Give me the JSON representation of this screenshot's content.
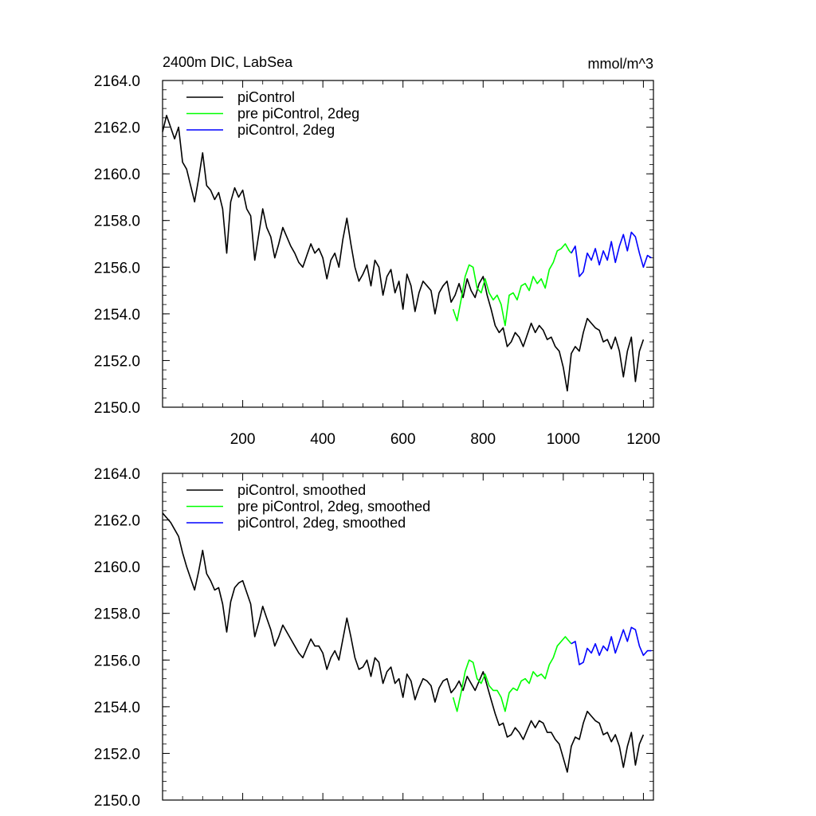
{
  "chart_data": [
    {
      "type": "line",
      "title": "2400m DIC, LabSea",
      "units": "mmol/m^3",
      "xlim": [
        0,
        1225
      ],
      "ylim": [
        2150,
        2164
      ],
      "x_tick_labels": [
        "200",
        "400",
        "600",
        "800",
        "1000",
        "1200"
      ],
      "y_tick_labels": [
        "2150.0",
        "2152.0",
        "2154.0",
        "2156.0",
        "2158.0",
        "2160.0",
        "2162.0",
        "2164.0"
      ],
      "legend_position": "top-left",
      "series": [
        {
          "name": "piControl",
          "color": "#000000",
          "x": [
            0,
            10,
            20,
            30,
            40,
            50,
            60,
            70,
            80,
            90,
            100,
            110,
            120,
            130,
            140,
            150,
            160,
            170,
            180,
            190,
            200,
            210,
            220,
            230,
            240,
            250,
            260,
            270,
            280,
            290,
            300,
            310,
            320,
            330,
            340,
            350,
            360,
            370,
            380,
            390,
            400,
            410,
            420,
            430,
            440,
            450,
            460,
            470,
            480,
            490,
            500,
            510,
            520,
            530,
            540,
            550,
            560,
            570,
            580,
            590,
            600,
            610,
            620,
            630,
            640,
            650,
            660,
            670,
            680,
            690,
            700,
            710,
            720,
            730,
            740,
            750,
            760,
            770,
            780,
            790,
            800,
            810,
            820,
            830,
            840,
            850,
            860,
            870,
            880,
            890,
            900,
            910,
            920,
            930,
            940,
            950,
            960,
            970,
            980,
            990,
            1000,
            1010,
            1020,
            1030,
            1040,
            1050,
            1060,
            1070,
            1080,
            1090,
            1100,
            1110,
            1120,
            1130,
            1140,
            1150,
            1160,
            1170,
            1180,
            1190,
            1200
          ],
          "y": [
            2161.8,
            2162.5,
            2162.0,
            2161.5,
            2162.0,
            2160.5,
            2160.2,
            2159.5,
            2158.8,
            2159.8,
            2160.9,
            2159.5,
            2159.3,
            2158.9,
            2159.2,
            2158.5,
            2156.6,
            2158.8,
            2159.4,
            2159.0,
            2159.3,
            2158.5,
            2158.2,
            2156.3,
            2157.4,
            2158.5,
            2157.7,
            2157.3,
            2156.4,
            2157.0,
            2157.7,
            2157.3,
            2156.9,
            2156.6,
            2156.2,
            2156.0,
            2156.5,
            2157.0,
            2156.6,
            2156.8,
            2156.4,
            2155.5,
            2156.3,
            2156.6,
            2156.0,
            2157.2,
            2158.1,
            2157.0,
            2156.0,
            2155.4,
            2155.7,
            2156.1,
            2155.2,
            2156.3,
            2156.0,
            2154.8,
            2155.6,
            2155.9,
            2154.9,
            2155.4,
            2154.2,
            2155.7,
            2155.2,
            2154.1,
            2154.9,
            2155.4,
            2155.2,
            2155.0,
            2154.0,
            2154.9,
            2155.2,
            2155.4,
            2154.5,
            2154.8,
            2155.3,
            2154.7,
            2155.5,
            2155.0,
            2154.7,
            2155.3,
            2155.6,
            2154.8,
            2154.2,
            2153.5,
            2153.2,
            2153.4,
            2152.6,
            2152.8,
            2153.2,
            2153.0,
            2152.6,
            2153.1,
            2153.6,
            2153.2,
            2153.5,
            2153.3,
            2152.9,
            2153.0,
            2152.6,
            2152.4,
            2151.7,
            2150.7,
            2152.3,
            2152.6,
            2152.4,
            2153.2,
            2153.8,
            2153.6,
            2153.4,
            2153.3,
            2152.8,
            2152.9,
            2152.5,
            2153.0,
            2152.4,
            2151.3,
            2152.4,
            2153.0,
            2151.1,
            2152.4,
            2152.9
          ]
        },
        {
          "name": "pre piControl, 2deg",
          "color": "#00ff00",
          "x": [
            725,
            735,
            745,
            755,
            765,
            775,
            785,
            795,
            805,
            815,
            825,
            835,
            845,
            855,
            865,
            875,
            885,
            895,
            905,
            915,
            925,
            935,
            945,
            955,
            965,
            975,
            985,
            995,
            1005,
            1015,
            1020
          ],
          "y": [
            2154.2,
            2153.7,
            2154.6,
            2155.6,
            2156.1,
            2156.0,
            2155.1,
            2154.9,
            2155.5,
            2154.9,
            2154.6,
            2154.8,
            2154.4,
            2153.5,
            2154.8,
            2154.9,
            2154.6,
            2155.2,
            2155.3,
            2155.0,
            2155.6,
            2155.3,
            2155.5,
            2155.1,
            2155.9,
            2156.2,
            2156.7,
            2156.8,
            2157.0,
            2156.7,
            2156.6
          ]
        },
        {
          "name": "piControl, 2deg",
          "color": "#0000ff",
          "x": [
            1020,
            1030,
            1040,
            1050,
            1060,
            1070,
            1080,
            1090,
            1100,
            1110,
            1120,
            1130,
            1140,
            1150,
            1160,
            1170,
            1180,
            1190,
            1200,
            1210,
            1220
          ],
          "y": [
            2156.6,
            2156.9,
            2155.6,
            2155.8,
            2156.6,
            2156.3,
            2156.8,
            2156.1,
            2156.7,
            2156.3,
            2157.1,
            2156.2,
            2156.9,
            2157.4,
            2156.7,
            2157.5,
            2157.3,
            2156.6,
            2156.0,
            2156.5,
            2156.4
          ]
        }
      ]
    },
    {
      "type": "line",
      "title": "",
      "xlim": [
        0,
        1225
      ],
      "ylim": [
        2150,
        2164
      ],
      "y_tick_labels": [
        "2150.0",
        "2152.0",
        "2154.0",
        "2156.0",
        "2158.0",
        "2160.0",
        "2162.0",
        "2164.0"
      ],
      "legend_position": "top-left",
      "series": [
        {
          "name": "piControl, smoothed",
          "color": "#000000",
          "x": [
            0,
            10,
            20,
            30,
            40,
            50,
            60,
            70,
            80,
            90,
            100,
            110,
            120,
            130,
            140,
            150,
            160,
            170,
            180,
            190,
            200,
            210,
            220,
            230,
            240,
            250,
            260,
            270,
            280,
            290,
            300,
            310,
            320,
            330,
            340,
            350,
            360,
            370,
            380,
            390,
            400,
            410,
            420,
            430,
            440,
            450,
            460,
            470,
            480,
            490,
            500,
            510,
            520,
            530,
            540,
            550,
            560,
            570,
            580,
            590,
            600,
            610,
            620,
            630,
            640,
            650,
            660,
            670,
            680,
            690,
            700,
            710,
            720,
            730,
            740,
            750,
            760,
            770,
            780,
            790,
            800,
            810,
            820,
            830,
            840,
            850,
            860,
            870,
            880,
            890,
            900,
            910,
            920,
            930,
            940,
            950,
            960,
            970,
            980,
            990,
            1000,
            1010,
            1020,
            1030,
            1040,
            1050,
            1060,
            1070,
            1080,
            1090,
            1100,
            1110,
            1120,
            1130,
            1140,
            1150,
            1160,
            1170,
            1180,
            1190,
            1200
          ],
          "y": [
            2162.3,
            2162.1,
            2161.9,
            2161.6,
            2161.3,
            2160.6,
            2160.0,
            2159.5,
            2159.0,
            2159.8,
            2160.7,
            2159.7,
            2159.4,
            2159.0,
            2159.1,
            2158.4,
            2157.2,
            2158.5,
            2159.1,
            2159.3,
            2159.4,
            2158.9,
            2158.4,
            2157.0,
            2157.6,
            2158.3,
            2157.8,
            2157.3,
            2156.6,
            2157.0,
            2157.5,
            2157.2,
            2156.9,
            2156.6,
            2156.3,
            2156.1,
            2156.5,
            2156.9,
            2156.6,
            2156.6,
            2156.3,
            2155.6,
            2156.1,
            2156.4,
            2156.0,
            2156.9,
            2157.8,
            2157.0,
            2156.1,
            2155.6,
            2155.7,
            2156.0,
            2155.3,
            2156.1,
            2155.9,
            2155.0,
            2155.5,
            2155.7,
            2155.0,
            2155.2,
            2154.4,
            2155.4,
            2155.1,
            2154.3,
            2154.8,
            2155.2,
            2155.1,
            2154.9,
            2154.2,
            2154.8,
            2155.1,
            2155.2,
            2154.6,
            2154.8,
            2155.1,
            2154.7,
            2155.3,
            2155.0,
            2154.7,
            2155.1,
            2155.5,
            2154.9,
            2154.3,
            2153.7,
            2153.2,
            2153.3,
            2152.7,
            2152.8,
            2153.1,
            2152.9,
            2152.6,
            2153.0,
            2153.4,
            2153.1,
            2153.4,
            2153.3,
            2152.9,
            2152.9,
            2152.6,
            2152.4,
            2151.8,
            2151.2,
            2152.3,
            2152.7,
            2152.6,
            2153.3,
            2153.8,
            2153.6,
            2153.4,
            2153.3,
            2152.8,
            2152.9,
            2152.5,
            2152.8,
            2152.3,
            2151.4,
            2152.3,
            2152.9,
            2151.5,
            2152.4,
            2152.8
          ]
        },
        {
          "name": "pre piControl, 2deg, smoothed",
          "color": "#00ff00",
          "x": [
            725,
            735,
            745,
            755,
            765,
            775,
            785,
            795,
            805,
            815,
            825,
            835,
            845,
            855,
            865,
            875,
            885,
            895,
            905,
            915,
            925,
            935,
            945,
            955,
            965,
            975,
            985,
            995,
            1005,
            1015,
            1020
          ],
          "y": [
            2154.4,
            2153.8,
            2154.6,
            2155.5,
            2156.0,
            2155.9,
            2155.2,
            2155.0,
            2155.4,
            2154.9,
            2154.7,
            2154.7,
            2154.4,
            2153.8,
            2154.6,
            2154.8,
            2154.7,
            2155.1,
            2155.2,
            2155.0,
            2155.5,
            2155.3,
            2155.4,
            2155.2,
            2155.8,
            2156.1,
            2156.6,
            2156.8,
            2157.0,
            2156.8,
            2156.7
          ]
        },
        {
          "name": "piControl, 2deg, smoothed",
          "color": "#0000ff",
          "x": [
            1020,
            1030,
            1040,
            1050,
            1060,
            1070,
            1080,
            1090,
            1100,
            1110,
            1120,
            1130,
            1140,
            1150,
            1160,
            1170,
            1180,
            1190,
            1200,
            1210,
            1220
          ],
          "y": [
            2156.7,
            2156.8,
            2155.8,
            2155.9,
            2156.5,
            2156.3,
            2156.7,
            2156.2,
            2156.6,
            2156.4,
            2157.0,
            2156.3,
            2156.8,
            2157.3,
            2156.8,
            2157.4,
            2157.3,
            2156.6,
            2156.2,
            2156.4,
            2156.4
          ]
        }
      ]
    }
  ]
}
